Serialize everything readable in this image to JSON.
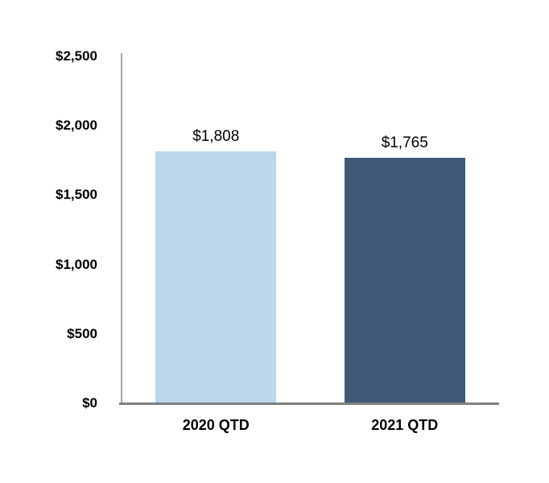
{
  "chart_data": {
    "type": "bar",
    "title": "",
    "xlabel": "",
    "ylabel": "",
    "categories": [
      "2020 QTD",
      "2021 QTD"
    ],
    "values": [
      1808,
      1765
    ],
    "value_labels": [
      "$1,808",
      "$1,765"
    ],
    "bar_colors": [
      "#bcd6ea",
      "#3e5a76"
    ],
    "ylim": [
      0,
      2500
    ],
    "yticks": [
      0,
      500,
      1000,
      1500,
      2000,
      2500
    ],
    "ytick_labels": [
      "$0",
      "$500",
      "$1,000",
      "$1,500",
      "$2,000",
      "$2,500"
    ],
    "grid": false,
    "legend": "none",
    "background_color": "#ffffff",
    "y_axis_line_color": "#a6a6a6",
    "x_axis_line_color": "#7f7f7f",
    "text_color": "#000000"
  }
}
